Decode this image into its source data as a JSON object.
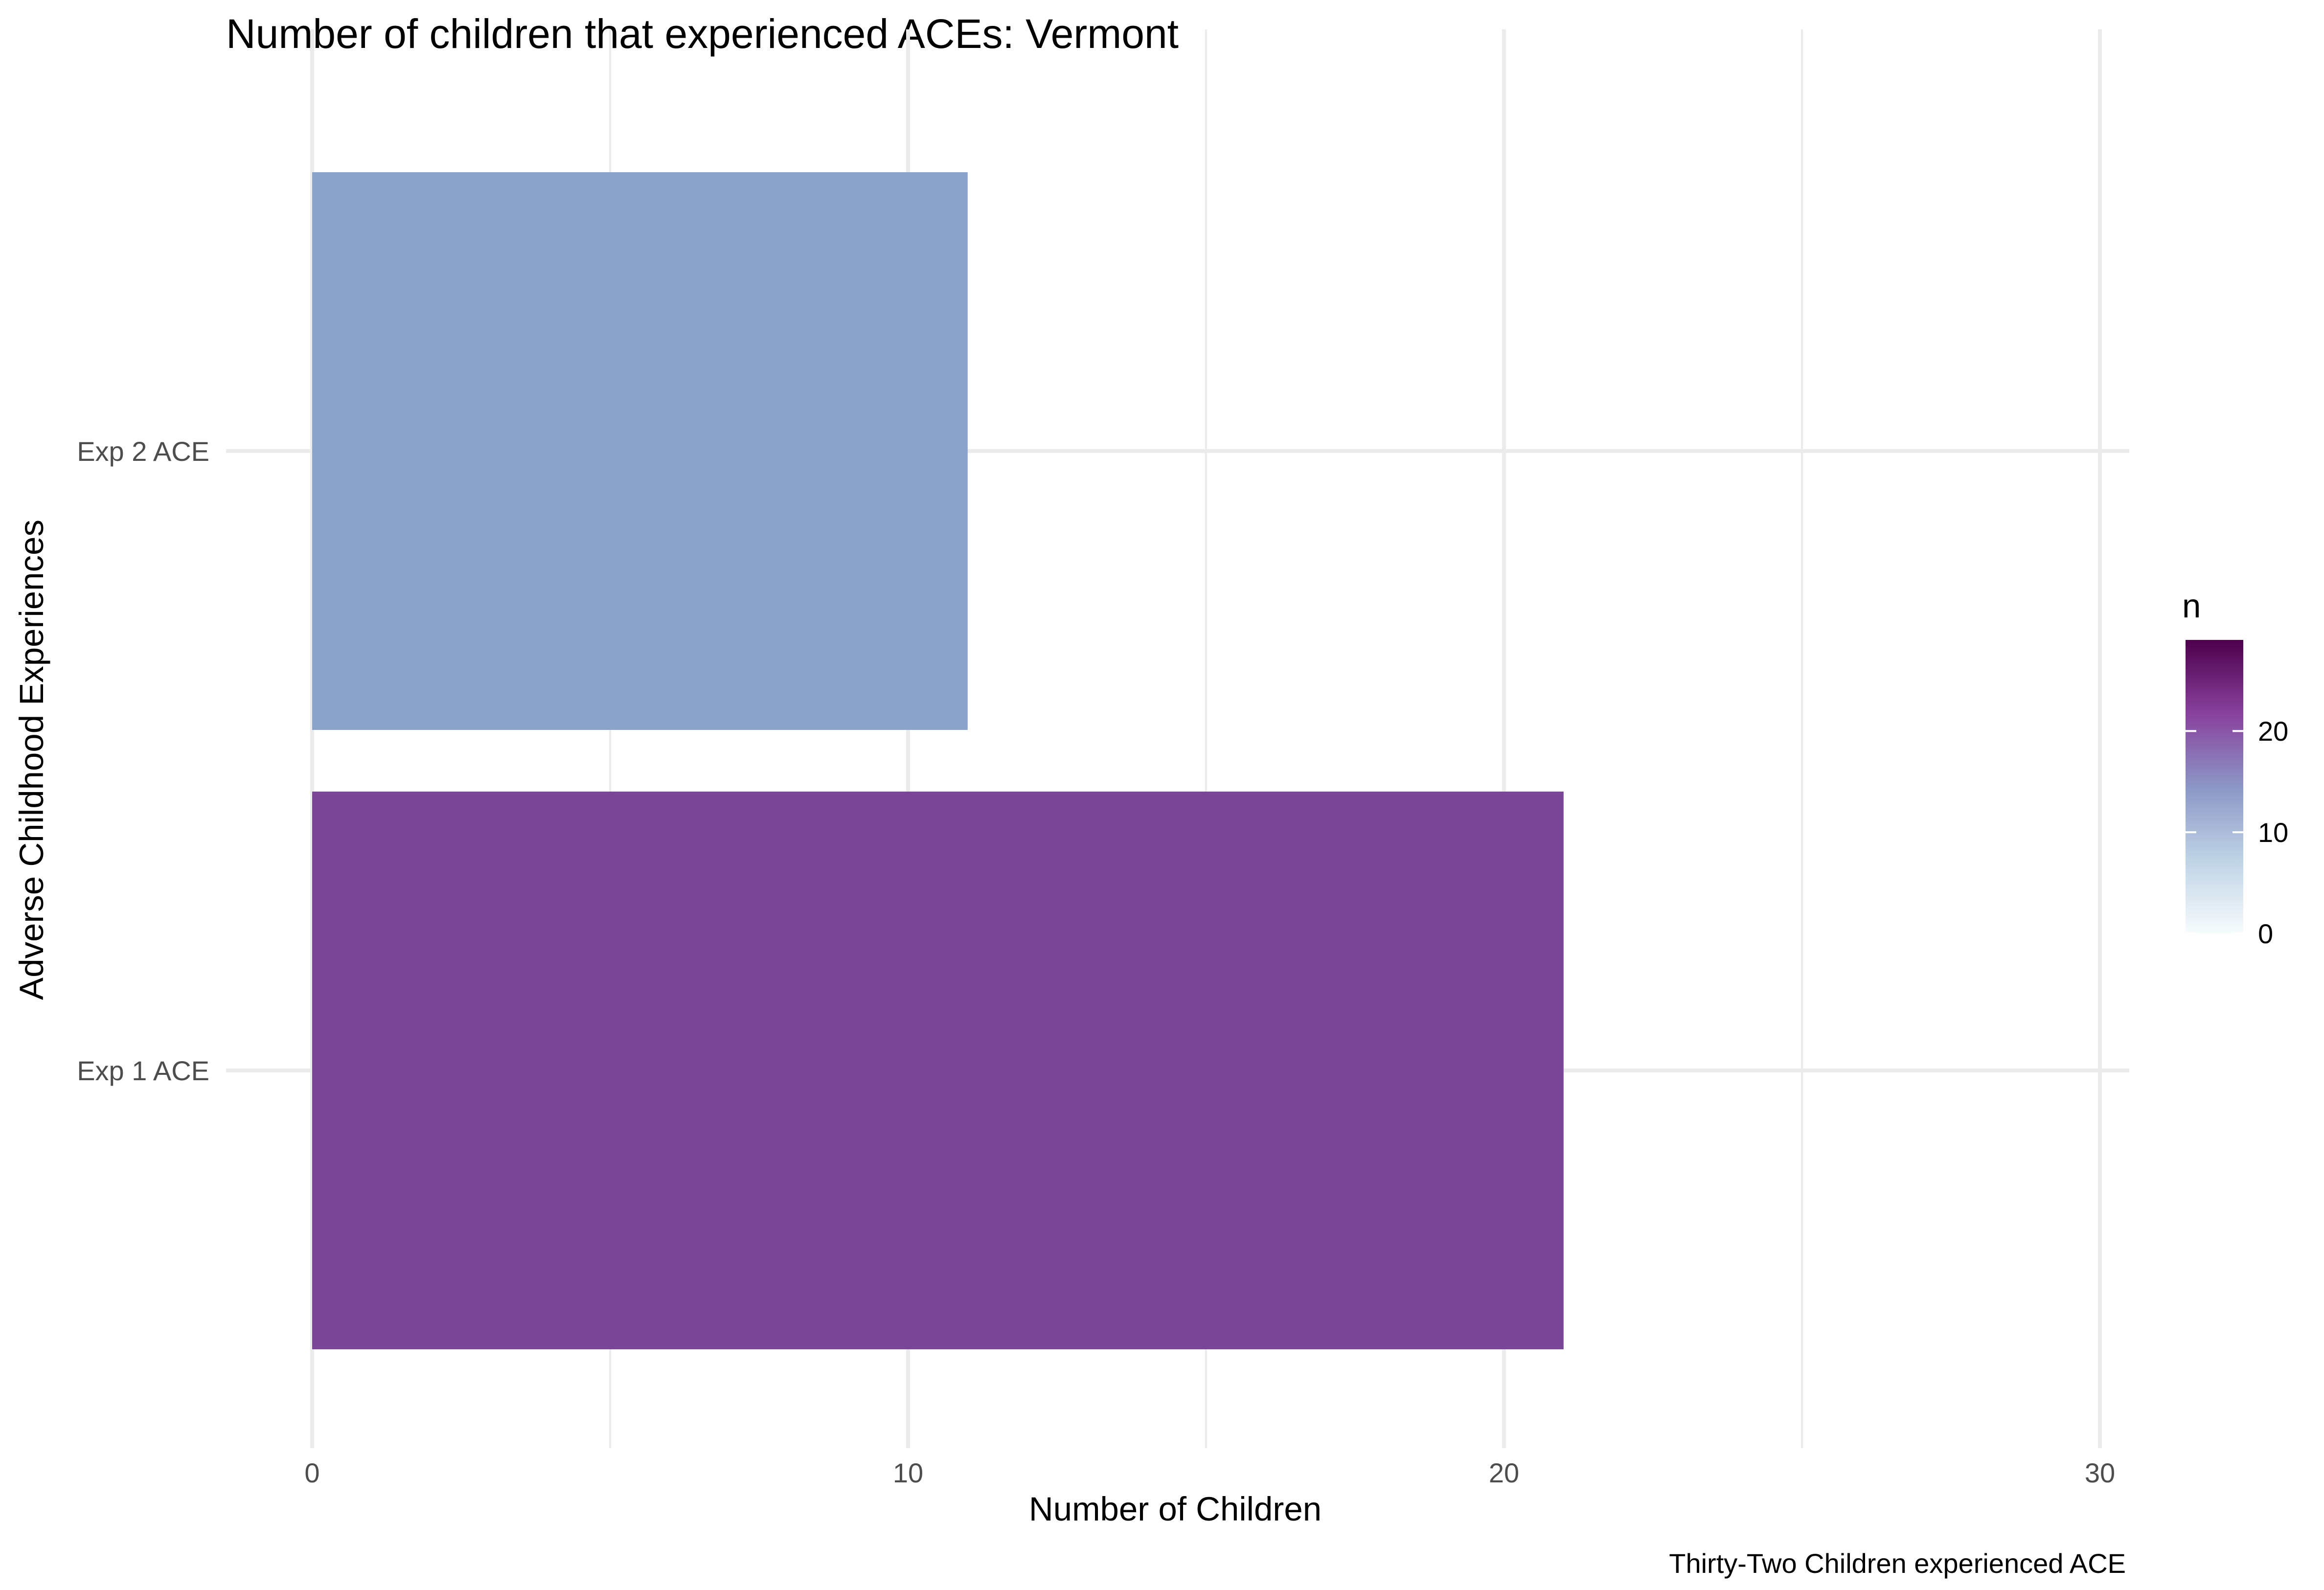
{
  "chart_data": {
    "type": "bar",
    "orientation": "horizontal",
    "title": "Number of children that experienced ACEs: Vermont",
    "xlabel": "Number of Children",
    "ylabel": "Adverse Childhood Experiences",
    "caption": "Thirty-Two Children experienced ACE",
    "categories": [
      "Exp 1 ACE",
      "Exp 2 ACE"
    ],
    "values": [
      21,
      11
    ],
    "xlim": [
      0,
      30.5
    ],
    "x_ticks": [
      0,
      10,
      20,
      30
    ],
    "grid": true,
    "legend": {
      "title": "n",
      "placement": "right",
      "ticks": [
        0,
        10,
        20
      ],
      "range": [
        0,
        29
      ]
    },
    "colors": {
      "gradient": [
        "#f7fcfd",
        "#bfd3e6",
        "#8c96c6",
        "#88419d",
        "#4d004b"
      ],
      "bars": [
        "#7a4698",
        "#8ba2cb"
      ],
      "grid": "#ebebeb"
    }
  }
}
